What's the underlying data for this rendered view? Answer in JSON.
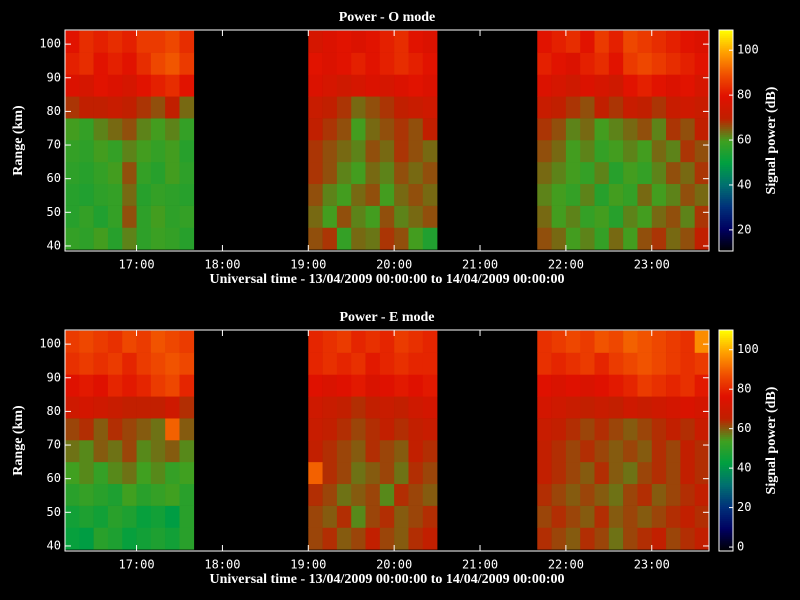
{
  "chart_data": [
    {
      "type": "heatmap",
      "title": "Power - O mode",
      "xlabel": "Universal time - 13/04/2009 00:00:00 to 14/04/2009 00:00:00",
      "ylabel": "Range (km)",
      "colorbar_label": "Signal power (dB)",
      "background": "#000000",
      "colormap": [
        "#000000",
        "#000060",
        "#00307a",
        "#007070",
        "#00a040",
        "#40a020",
        "#c02000",
        "#e01000",
        "#f05000",
        "#ffa000",
        "#ffff00"
      ],
      "xlim": [
        970,
        1420
      ],
      "ylim": [
        38.5,
        104.2
      ],
      "clim": [
        10.6,
        109
      ],
      "xticks": [
        {
          "value": 1020,
          "label": "17:00"
        },
        {
          "value": 1080,
          "label": "18:00"
        },
        {
          "value": 1140,
          "label": "19:00"
        },
        {
          "value": 1200,
          "label": "20:00"
        },
        {
          "value": 1260,
          "label": "21:00"
        },
        {
          "value": 1320,
          "label": "22:00"
        },
        {
          "value": 1380,
          "label": "23:00"
        }
      ],
      "yticks": [
        40,
        50,
        60,
        70,
        80,
        90,
        100
      ],
      "cticks": [
        20,
        40,
        60,
        80,
        100
      ],
      "xbins": [
        970,
        980,
        990,
        1000,
        1010,
        1020,
        1030,
        1040,
        1050,
        1060,
        1070,
        1080,
        1090,
        1100,
        1110,
        1120,
        1130,
        1140,
        1150,
        1160,
        1170,
        1180,
        1190,
        1200,
        1210,
        1220,
        1230,
        1240,
        1250,
        1260,
        1270,
        1280,
        1290,
        1300,
        1310,
        1320,
        1330,
        1340,
        1350,
        1360,
        1370,
        1380,
        1390,
        1400,
        1410,
        1420
      ],
      "ybins": [
        39,
        45.5,
        52,
        58.5,
        65,
        71.5,
        78,
        84.5,
        91,
        97.5,
        104
      ],
      "z": [
        [
          58,
          57,
          60,
          56,
          62,
          57,
          59,
          58,
          56,
          null,
          null,
          null,
          null,
          null,
          null,
          null,
          null,
          66,
          68,
          58,
          64,
          63,
          68,
          66,
          60,
          55,
          null,
          null,
          null,
          null,
          null,
          null,
          null,
          66,
          64,
          60,
          62,
          58,
          64,
          60,
          66,
          68,
          64,
          66,
          70
        ],
        [
          56,
          58,
          55,
          58,
          66,
          57,
          60,
          57,
          58,
          null,
          null,
          null,
          null,
          null,
          null,
          null,
          null,
          64,
          60,
          66,
          62,
          60,
          66,
          62,
          64,
          66,
          null,
          null,
          null,
          null,
          null,
          null,
          null,
          64,
          60,
          62,
          58,
          60,
          56,
          62,
          60,
          64,
          66,
          62,
          68
        ],
        [
          56,
          55,
          57,
          58,
          64,
          56,
          58,
          57,
          56,
          null,
          null,
          null,
          null,
          null,
          null,
          null,
          null,
          66,
          62,
          60,
          64,
          66,
          60,
          64,
          66,
          64,
          null,
          null,
          null,
          null,
          null,
          null,
          null,
          62,
          60,
          58,
          62,
          56,
          60,
          58,
          64,
          60,
          62,
          66,
          64
        ],
        [
          57,
          56,
          58,
          60,
          66,
          58,
          56,
          60,
          57,
          null,
          null,
          null,
          null,
          null,
          null,
          null,
          null,
          68,
          66,
          62,
          60,
          64,
          62,
          66,
          64,
          66,
          null,
          null,
          null,
          null,
          null,
          null,
          null,
          64,
          62,
          60,
          58,
          62,
          56,
          60,
          58,
          62,
          66,
          64,
          68
        ],
        [
          58,
          57,
          60,
          58,
          62,
          60,
          58,
          60,
          56,
          null,
          null,
          null,
          null,
          null,
          null,
          null,
          null,
          68,
          66,
          64,
          62,
          66,
          64,
          68,
          66,
          64,
          null,
          null,
          null,
          null,
          null,
          null,
          null,
          66,
          64,
          60,
          62,
          58,
          60,
          62,
          60,
          64,
          62,
          68,
          66
        ],
        [
          60,
          58,
          62,
          64,
          66,
          62,
          60,
          62,
          58,
          null,
          null,
          null,
          null,
          null,
          null,
          null,
          null,
          70,
          68,
          66,
          60,
          64,
          66,
          68,
          66,
          70,
          null,
          null,
          null,
          null,
          null,
          null,
          null,
          68,
          66,
          62,
          64,
          60,
          62,
          64,
          66,
          62,
          68,
          66,
          70
        ],
        [
          68,
          70,
          70,
          72,
          70,
          68,
          66,
          70,
          64,
          null,
          null,
          null,
          null,
          null,
          null,
          null,
          null,
          72,
          70,
          68,
          64,
          66,
          68,
          70,
          72,
          74,
          null,
          null,
          null,
          null,
          null,
          null,
          null,
          72,
          70,
          68,
          66,
          70,
          68,
          72,
          70,
          68,
          72,
          74,
          72
        ],
        [
          78,
          76,
          80,
          78,
          76,
          80,
          82,
          84,
          80,
          null,
          null,
          null,
          null,
          null,
          null,
          null,
          null,
          78,
          76,
          74,
          76,
          78,
          76,
          78,
          80,
          78,
          null,
          null,
          null,
          null,
          null,
          null,
          null,
          78,
          76,
          74,
          78,
          76,
          74,
          80,
          82,
          80,
          78,
          80,
          76
        ],
        [
          82,
          84,
          80,
          82,
          80,
          84,
          88,
          90,
          86,
          null,
          null,
          null,
          null,
          null,
          null,
          null,
          null,
          80,
          78,
          80,
          82,
          80,
          82,
          84,
          82,
          80,
          null,
          null,
          null,
          null,
          null,
          null,
          null,
          82,
          80,
          78,
          82,
          84,
          80,
          86,
          88,
          86,
          84,
          82,
          80
        ],
        [
          80,
          84,
          82,
          84,
          82,
          86,
          86,
          88,
          84,
          null,
          null,
          null,
          null,
          null,
          null,
          null,
          null,
          76,
          78,
          80,
          78,
          80,
          82,
          84,
          80,
          78,
          null,
          null,
          null,
          null,
          null,
          null,
          null,
          80,
          82,
          84,
          80,
          86,
          82,
          88,
          86,
          84,
          82,
          80,
          78
        ]
      ]
    },
    {
      "type": "heatmap",
      "title": "Power - E mode",
      "xlabel": "Universal time - 13/04/2009 00:00:00 to 14/04/2009 00:00:00",
      "ylabel": "Range (km)",
      "colorbar_label": "Signal power (dB)",
      "background": "#000000",
      "colormap": [
        "#000000",
        "#000060",
        "#00307a",
        "#007070",
        "#00a040",
        "#40a020",
        "#c02000",
        "#e01000",
        "#f05000",
        "#ffa000",
        "#ffff00"
      ],
      "xlim": [
        970,
        1420
      ],
      "ylim": [
        38.5,
        104.2
      ],
      "clim": [
        -2,
        110
      ],
      "xticks": [
        {
          "value": 1020,
          "label": "17:00"
        },
        {
          "value": 1080,
          "label": "18:00"
        },
        {
          "value": 1140,
          "label": "19:00"
        },
        {
          "value": 1200,
          "label": "20:00"
        },
        {
          "value": 1260,
          "label": "21:00"
        },
        {
          "value": 1320,
          "label": "22:00"
        },
        {
          "value": 1380,
          "label": "23:00"
        }
      ],
      "yticks": [
        40,
        50,
        60,
        70,
        80,
        90,
        100
      ],
      "cticks": [
        0,
        20,
        40,
        60,
        80,
        100
      ],
      "xbins": [
        970,
        980,
        990,
        1000,
        1010,
        1020,
        1030,
        1040,
        1050,
        1060,
        1070,
        1080,
        1090,
        1100,
        1110,
        1120,
        1130,
        1140,
        1150,
        1160,
        1170,
        1180,
        1190,
        1200,
        1210,
        1220,
        1230,
        1240,
        1250,
        1260,
        1270,
        1280,
        1290,
        1300,
        1310,
        1320,
        1330,
        1340,
        1350,
        1360,
        1370,
        1380,
        1390,
        1400,
        1410,
        1420
      ],
      "ybins": [
        39,
        45.5,
        52,
        58.5,
        65,
        71.5,
        78,
        84.5,
        91,
        97.5,
        104
      ],
      "z": [
        [
          44,
          42,
          50,
          48,
          44,
          46,
          48,
          46,
          50,
          null,
          null,
          null,
          null,
          null,
          null,
          null,
          null,
          62,
          64,
          60,
          62,
          66,
          62,
          60,
          64,
          66,
          null,
          null,
          null,
          null,
          null,
          null,
          null,
          64,
          62,
          60,
          64,
          62,
          58,
          62,
          64,
          66,
          62,
          64,
          66
        ],
        [
          46,
          48,
          46,
          50,
          48,
          44,
          46,
          42,
          50,
          null,
          null,
          null,
          null,
          null,
          null,
          null,
          null,
          62,
          60,
          64,
          56,
          62,
          64,
          60,
          62,
          64,
          null,
          null,
          null,
          null,
          null,
          null,
          null,
          62,
          64,
          62,
          60,
          64,
          60,
          62,
          60,
          62,
          64,
          66,
          64
        ],
        [
          50,
          52,
          50,
          48,
          54,
          50,
          52,
          54,
          50,
          null,
          null,
          null,
          null,
          null,
          null,
          null,
          null,
          64,
          62,
          58,
          60,
          62,
          56,
          64,
          62,
          60,
          null,
          null,
          null,
          null,
          null,
          null,
          null,
          64,
          62,
          60,
          62,
          60,
          58,
          62,
          64,
          60,
          62,
          64,
          66
        ],
        [
          54,
          56,
          52,
          56,
          58,
          54,
          56,
          52,
          54,
          null,
          null,
          null,
          null,
          null,
          null,
          null,
          null,
          90,
          64,
          62,
          58,
          60,
          62,
          58,
          64,
          62,
          null,
          null,
          null,
          null,
          null,
          null,
          null,
          66,
          64,
          62,
          60,
          64,
          60,
          58,
          62,
          64,
          62,
          66,
          64
        ],
        [
          58,
          56,
          60,
          58,
          62,
          56,
          58,
          60,
          56,
          null,
          null,
          null,
          null,
          null,
          null,
          null,
          null,
          66,
          64,
          62,
          60,
          64,
          62,
          60,
          66,
          64,
          null,
          null,
          null,
          null,
          null,
          null,
          null,
          66,
          64,
          62,
          64,
          62,
          60,
          62,
          60,
          64,
          62,
          66,
          64
        ],
        [
          62,
          64,
          60,
          64,
          62,
          60,
          58,
          90,
          60,
          null,
          null,
          null,
          null,
          null,
          null,
          null,
          null,
          68,
          66,
          64,
          62,
          64,
          66,
          64,
          66,
          68,
          null,
          null,
          null,
          null,
          null,
          null,
          null,
          68,
          66,
          64,
          62,
          64,
          62,
          60,
          62,
          64,
          66,
          64,
          68
        ],
        [
          70,
          72,
          70,
          68,
          66,
          66,
          66,
          70,
          64,
          null,
          null,
          null,
          null,
          null,
          null,
          null,
          null,
          70,
          68,
          66,
          64,
          66,
          68,
          66,
          70,
          72,
          null,
          null,
          null,
          null,
          null,
          null,
          null,
          72,
          70,
          68,
          66,
          68,
          66,
          70,
          68,
          70,
          72,
          74,
          72
        ],
        [
          76,
          78,
          76,
          80,
          78,
          80,
          84,
          86,
          80,
          null,
          null,
          null,
          null,
          null,
          null,
          null,
          null,
          76,
          74,
          76,
          78,
          74,
          76,
          78,
          76,
          78,
          null,
          null,
          null,
          null,
          null,
          null,
          null,
          76,
          74,
          76,
          74,
          76,
          78,
          80,
          84,
          82,
          80,
          82,
          78
        ],
        [
          82,
          84,
          82,
          84,
          80,
          84,
          86,
          88,
          86,
          null,
          null,
          null,
          null,
          null,
          null,
          null,
          null,
          80,
          82,
          80,
          82,
          78,
          80,
          82,
          80,
          80,
          null,
          null,
          null,
          null,
          null,
          null,
          null,
          82,
          80,
          82,
          84,
          80,
          84,
          86,
          88,
          86,
          84,
          82,
          84
        ],
        [
          84,
          86,
          84,
          82,
          86,
          84,
          88,
          86,
          84,
          null,
          null,
          null,
          null,
          null,
          null,
          null,
          null,
          80,
          82,
          84,
          80,
          82,
          80,
          84,
          82,
          80,
          null,
          null,
          null,
          null,
          null,
          null,
          null,
          82,
          84,
          86,
          84,
          88,
          86,
          90,
          88,
          86,
          84,
          82,
          96
        ]
      ]
    }
  ]
}
